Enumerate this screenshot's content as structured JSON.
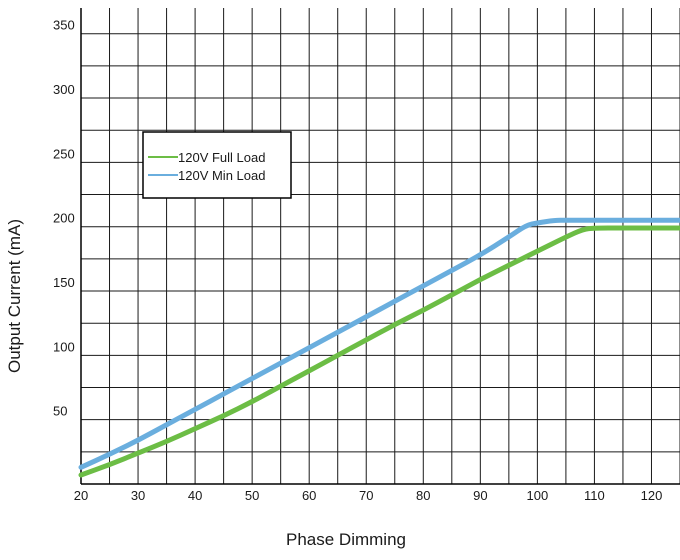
{
  "chart_data": {
    "type": "line",
    "title": "",
    "xlabel": "Phase Dimming",
    "ylabel": "Output Current (mA)",
    "xlim": [
      20,
      125
    ],
    "ylim": [
      0,
      370
    ],
    "x_ticks": [
      20,
      30,
      40,
      50,
      60,
      70,
      80,
      90,
      100,
      110,
      120
    ],
    "y_ticks": [
      50,
      100,
      150,
      200,
      250,
      300,
      350
    ],
    "x_minor_step": 5,
    "y_minor_step": 25,
    "grid": true,
    "legend_position": "upper-left",
    "series": [
      {
        "name": "120V Full Load",
        "color": "#6cbd45",
        "x": [
          20,
          25,
          30,
          35,
          40,
          45,
          50,
          55,
          60,
          65,
          70,
          75,
          80,
          85,
          90,
          95,
          100,
          105,
          108,
          110,
          115,
          120,
          125
        ],
        "y": [
          7,
          15,
          24,
          33,
          43,
          53,
          64,
          76,
          88,
          100,
          112,
          124,
          135,
          147,
          159,
          170,
          181,
          192,
          198,
          199,
          199,
          199,
          199
        ]
      },
      {
        "name": "120V Min Load",
        "color": "#6aaede",
        "x": [
          20,
          25,
          30,
          35,
          40,
          45,
          50,
          55,
          60,
          65,
          70,
          75,
          80,
          85,
          90,
          95,
          98,
          100,
          103,
          105,
          110,
          115,
          120,
          125
        ],
        "y": [
          13,
          23,
          34,
          46,
          58,
          70,
          82,
          94,
          106,
          118,
          130,
          142,
          154,
          166,
          178,
          192,
          201,
          203,
          205,
          205,
          205,
          205,
          205,
          205
        ]
      }
    ]
  }
}
